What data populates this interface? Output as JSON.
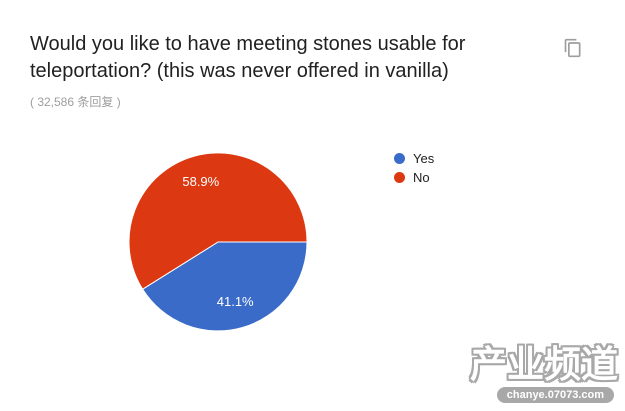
{
  "header": {
    "title_lines": [
      "Would you like to have meeting stones usable for",
      "teleportation? (this was never offered in vanilla)"
    ],
    "response_note": "( 32,586 条回复 )"
  },
  "chart_data": {
    "type": "pie",
    "title": "Would you like to have meeting stones usable for teleportation? (this was never offered in vanilla)",
    "subtitle": "( 32,586 条回复 )",
    "total_responses": "32,586",
    "start_angle_deg": 90,
    "direction": "clockwise",
    "legend_position": "right",
    "slice_label_format": "percent",
    "slice_label_color": "#ffffff",
    "slices": [
      {
        "label": "Yes",
        "percent": 41.1,
        "color": "#3b6bc8"
      },
      {
        "label": "No",
        "percent": 58.9,
        "color": "#dc3912"
      }
    ]
  },
  "watermark": {
    "title": "产业频道",
    "url": "chanye.07073.com"
  }
}
